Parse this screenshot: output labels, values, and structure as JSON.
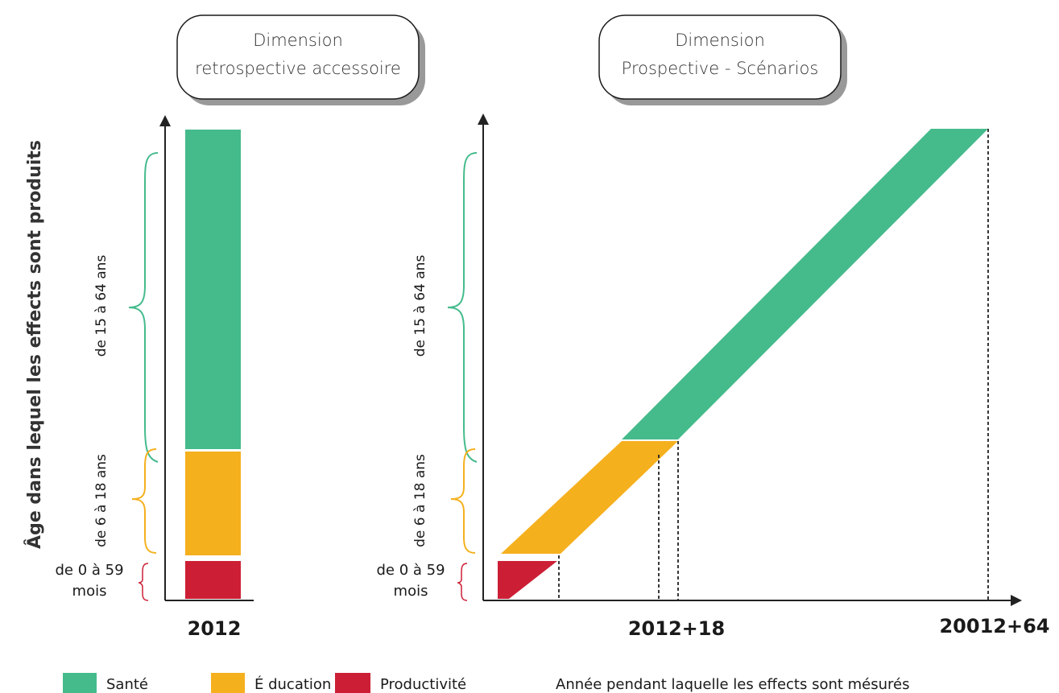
{
  "colors": {
    "sante": "#45bb8c",
    "education": "#f5b01e",
    "productivite": "#cc1f36",
    "axis": "#222222",
    "box_shadow": "#999999"
  },
  "boxes": {
    "left": {
      "line1": "Dimension",
      "line2": "retrospective accessoire"
    },
    "right": {
      "line1": "Dimension",
      "line2": "Prospective - Scénarios"
    }
  },
  "y_axis_label": "Âge dans lequel les effects sont produits",
  "age_groups": {
    "sante": "de 15  à 64 ans",
    "education": "de 6 à 18 ans",
    "productivite_line1": "de 0 à 59",
    "productivite_line2": "mois"
  },
  "year_labels": {
    "left": "2012",
    "right_mid": "2012+18",
    "right_end": "20012+64"
  },
  "x_caption": "Année pendant laquelle les effects sont mésurés",
  "legend": [
    {
      "label": "Santé",
      "color_key": "sante"
    },
    {
      "label": "É ducation",
      "color_key": "education"
    },
    {
      "label": "Productivité",
      "color_key": "productivite"
    }
  ]
}
